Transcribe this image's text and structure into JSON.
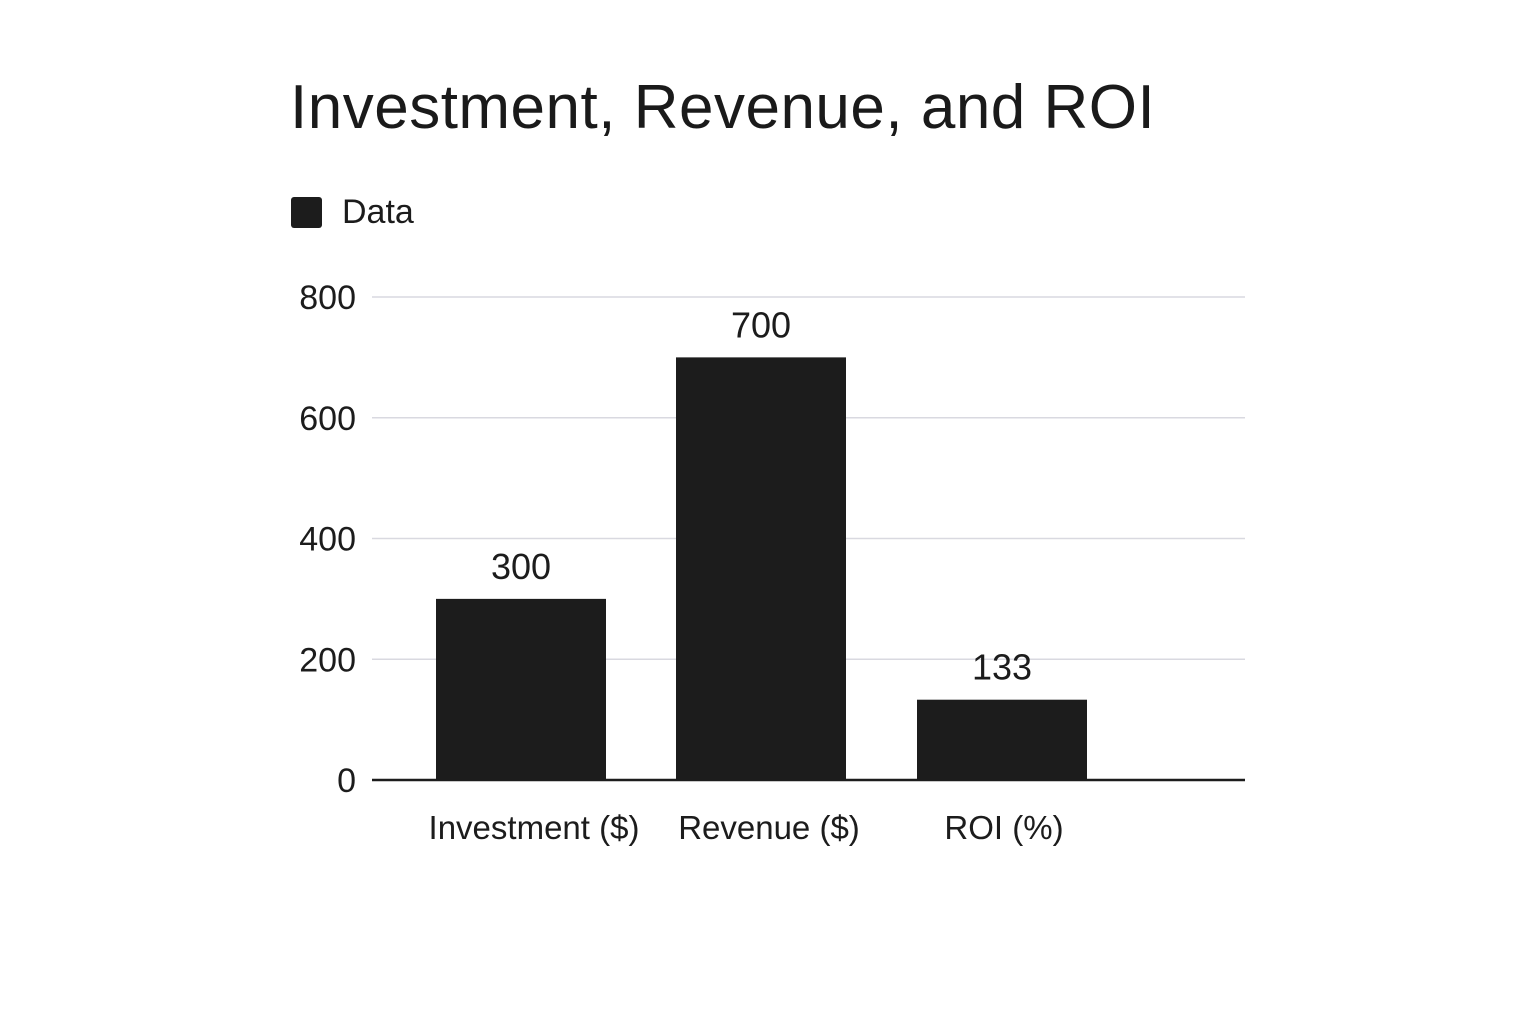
{
  "chart_data": {
    "type": "bar",
    "title": "Investment, Revenue, and ROI",
    "xlabel": "",
    "ylabel": "",
    "categories": [
      "Investment ($)",
      "Revenue ($)",
      "ROI (%)"
    ],
    "series": [
      {
        "name": "Data",
        "values": [
          300,
          700,
          133
        ]
      }
    ],
    "data_labels": [
      "300",
      "700",
      "133"
    ],
    "ylim": [
      0,
      800
    ],
    "yticks": [
      "0",
      "200",
      "400",
      "600",
      "800"
    ],
    "grid": true,
    "legend_position": "top-left",
    "colors": {
      "bar": "#1c1c1c",
      "grid": "#d9d9e0",
      "axis": "#1c1c1c"
    }
  }
}
